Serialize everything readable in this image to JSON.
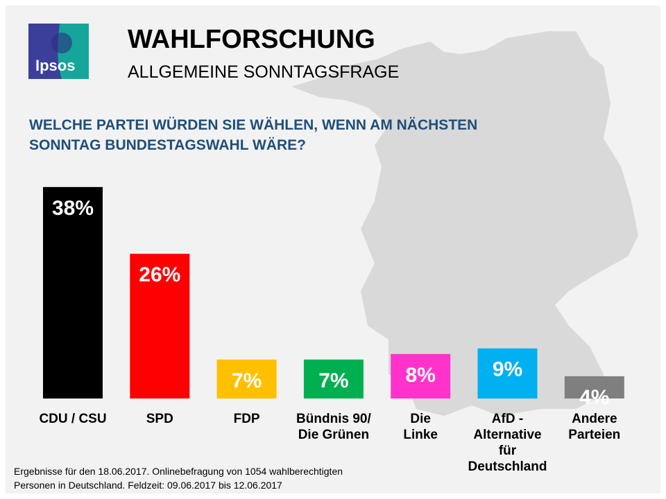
{
  "logo": {
    "text": "Ipsos",
    "colors": [
      "#3b3f99",
      "#16a59b"
    ]
  },
  "header": {
    "title": "WAHLFORSCHUNG",
    "subtitle": "ALLGEMEINE SONNTAGSFRAGE"
  },
  "question": {
    "line1": "WELCHE PARTEI WÜRDEN SIE WÄHLEN, WENN AM NÄCHSTEN",
    "line2": "SONNTAG BUNDESTAGSWAHL WÄRE?"
  },
  "chart_data": {
    "type": "bar",
    "categories": [
      "CDU / CSU",
      "SPD",
      "FDP",
      "Bündnis 90/\nDie Grünen",
      "Die\nLinke",
      "AfD -\nAlternative\nfür\nDeutschland",
      "Andere\nParteien"
    ],
    "values": [
      38,
      26,
      7,
      7,
      8,
      9,
      4
    ],
    "data_labels": [
      "38%",
      "26%",
      "7%",
      "7%",
      "8%",
      "9%",
      "4%"
    ],
    "colors": [
      "#000000",
      "#ff0000",
      "#ffc000",
      "#00b050",
      "#ff33cc",
      "#00b0f0",
      "#7f7f7f"
    ],
    "unit": "%",
    "grid": false,
    "axes_visible": false
  },
  "footnote": {
    "line1": "Ergebnisse  für den  18.06.2017. Onlinebefragung  von 1054 wahlberechtigten",
    "line2": "Personen in Deutschland.  Feldzeit: 09.06.2017 bis 12.06.2017"
  }
}
